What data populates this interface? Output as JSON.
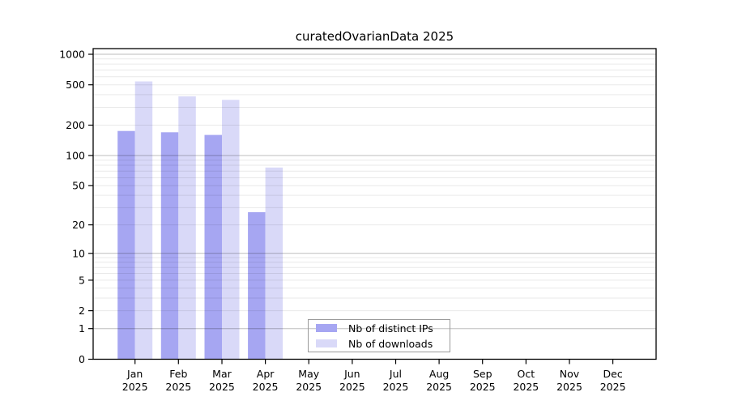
{
  "chart_data": {
    "type": "bar",
    "title": "curatedOvarianData 2025",
    "scale": "log1p",
    "categories": [
      "Jan",
      "Feb",
      "Mar",
      "Apr",
      "May",
      "Jun",
      "Jul",
      "Aug",
      "Sep",
      "Oct",
      "Nov",
      "Dec"
    ],
    "year": "2025",
    "series": [
      {
        "name": "Nb of distinct IPs",
        "color": "#a6a6f2",
        "values": [
          175,
          170,
          160,
          27,
          0,
          0,
          0,
          0,
          0,
          0,
          0,
          0
        ]
      },
      {
        "name": "Nb of downloads",
        "color": "#d9d9f8",
        "values": [
          540,
          385,
          355,
          76,
          0,
          0,
          0,
          0,
          0,
          0,
          0,
          0
        ]
      }
    ],
    "yticks": [
      1000,
      500,
      200,
      100,
      50,
      20,
      10,
      5,
      2,
      1,
      0
    ],
    "ytick_labels": [
      "1000",
      "500",
      "200",
      "100",
      "50",
      "20",
      "10",
      "5",
      "2",
      "1",
      "0"
    ],
    "ylim": [
      0,
      1000
    ],
    "xlabel": "",
    "ylabel": "",
    "legend_position": "bottom-center",
    "grid": "major-and-minor-log"
  },
  "colors": {
    "background": "#ffffff",
    "axis": "#000000",
    "major_grid": "rgba(0,0,0,0.26)",
    "minor_grid": "rgba(0,0,0,0.085)",
    "text": "#000000"
  }
}
